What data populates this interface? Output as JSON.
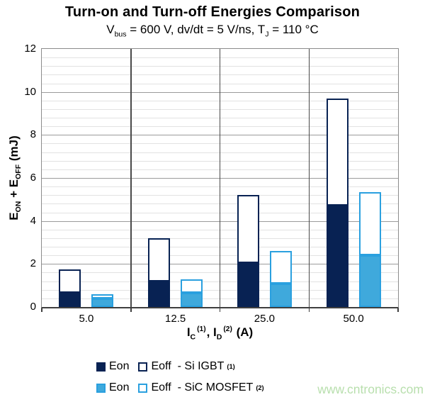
{
  "title": "Turn-on and Turn-off Energies Comparison",
  "subtitle": {
    "p1": "V",
    "s1": "bus",
    "p2": " = 600 V, dv/dt = 5 V/ns, T",
    "s2": "J",
    "p3": " = 110 °C"
  },
  "y_axis": {
    "p1": "E",
    "s1": "ON",
    "p2": " + E",
    "s2": "OFF",
    "p3": " (mJ)",
    "tick_labels": [
      "0",
      "2",
      "4",
      "6",
      "8",
      "10",
      "12"
    ]
  },
  "x_axis": {
    "p1": "I",
    "s1": "C",
    "sup1": "(1)",
    "p2": ", I",
    "s2": "D",
    "sup2": "(2)",
    "p3": " (A)",
    "tick_labels": [
      "5.0",
      "12.5",
      "25.0",
      "50.0"
    ]
  },
  "chart_data": {
    "type": "bar",
    "subtype": "grouped-stacked",
    "title": "Turn-on and Turn-off Energies Comparison",
    "subtitle": "Vbus = 600 V, dv/dt = 5 V/ns, TJ = 110 °C",
    "xlabel": "IC (1), ID (2) (A)",
    "ylabel": "EON + EOFF (mJ)",
    "categories": [
      "5.0",
      "12.5",
      "25.0",
      "50.0"
    ],
    "series": [
      {
        "name": "Eon - Si IGBT",
        "stack": "si-igbt",
        "fill": "#082253",
        "border": "#082253",
        "values": [
          0.65,
          1.2,
          2.05,
          4.7
        ]
      },
      {
        "name": "Eoff - Si IGBT",
        "stack": "si-igbt",
        "fill": "#ffffff",
        "border": "#082253",
        "values": [
          1.1,
          2.0,
          3.15,
          5.0
        ]
      },
      {
        "name": "Eon - SiC MOSFET",
        "stack": "sic-mosfet",
        "fill": "#3fa9dc",
        "border": "#2aa0df",
        "values": [
          0.38,
          0.65,
          1.1,
          2.4
        ]
      },
      {
        "name": "Eoff - SiC MOSFET",
        "stack": "sic-mosfet",
        "fill": "#ffffff",
        "border": "#2aa0df",
        "values": [
          0.22,
          0.65,
          1.5,
          2.95
        ]
      }
    ],
    "stack_totals": {
      "si-igbt": [
        1.75,
        3.2,
        5.2,
        9.7
      ],
      "sic-mosfet": [
        0.6,
        1.3,
        2.6,
        5.35
      ]
    },
    "ylim": [
      0,
      12
    ],
    "major_step": 2,
    "minor_step": 0.4,
    "grid": true,
    "legend_position": "bottom"
  },
  "legend": {
    "rows": [
      {
        "eon": "Eon",
        "eoff": "Eoff",
        "device": "- Si IGBT",
        "sup": "(1)",
        "fill": "#082253",
        "border": "#082253"
      },
      {
        "eon": "Eon",
        "eoff": "Eoff",
        "device": "- SiC MOSFET",
        "sup": "(2)",
        "fill": "#3fa9dc",
        "border": "#2aa0df"
      }
    ]
  },
  "watermark": {
    "text": "www.cntronics.com",
    "color": "#b8dfad"
  },
  "colors": {
    "grid_minor": "#e2e2e2",
    "grid_major": "#9b9b9b",
    "separator": "#4a4a4a",
    "plot_border": "#8c8c8c",
    "axis_line": "#3f3f3f",
    "background": "#ffffff",
    "text": "#000000"
  }
}
